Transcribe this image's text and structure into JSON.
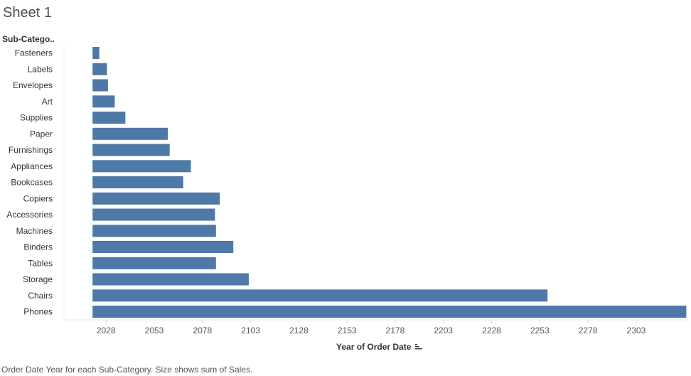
{
  "title": "Sheet 1",
  "footer": "Order Date Year for each Sub-Category.  Size shows sum of Sales.",
  "sort_icon": "sort-descending-icon",
  "chart_data": {
    "type": "bar",
    "orientation": "horizontal",
    "title": "",
    "ylabel": "Sub-Catego..",
    "xlabel": "Year of Order Date",
    "categories": [
      "Fasteners",
      "Labels",
      "Envelopes",
      "Art",
      "Supplies",
      "Paper",
      "Furnishings",
      "Appliances",
      "Bookcases",
      "Copiers",
      "Accessories",
      "Machines",
      "Binders",
      "Tables",
      "Storage",
      "Chairs",
      "Phones"
    ],
    "values": [
      2024.5,
      2028.5,
      2029,
      2032.5,
      2038,
      2060,
      2061,
      2072,
      2068,
      2087,
      2084.5,
      2085,
      2094,
      2085,
      2102,
      2257,
      2329
    ],
    "xlim": [
      2016.5,
      2327
    ],
    "xticks": [
      "2028",
      "2053",
      "2078",
      "2103",
      "2128",
      "2153",
      "2178",
      "2203",
      "2228",
      "2253",
      "2278",
      "2303"
    ],
    "color": "#4e79a7",
    "grid": false
  }
}
